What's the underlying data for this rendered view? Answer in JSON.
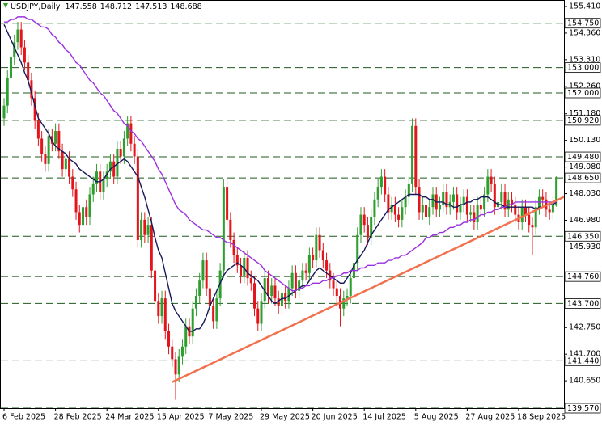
{
  "chart_data": {
    "type": "candlestick",
    "title": "USDJPY,Daily",
    "categories": [
      "6 Feb 2025",
      null,
      null,
      null,
      null,
      null,
      null,
      null,
      null,
      null,
      null,
      null,
      null,
      null,
      null,
      "28 Feb 2025",
      null,
      null,
      null,
      null,
      null,
      null,
      null,
      null,
      null,
      null,
      null,
      null,
      null,
      null,
      "24 Mar 2025",
      null,
      null,
      null,
      null,
      null,
      null,
      null,
      null,
      null,
      null,
      null,
      null,
      null,
      null,
      "15 Apr 2025",
      null,
      null,
      null,
      null,
      null,
      null,
      null,
      null,
      null,
      null,
      null,
      null,
      null,
      null,
      "7 May 2025",
      null,
      null,
      null,
      null,
      null,
      null,
      null,
      null,
      null,
      null,
      null,
      null,
      null,
      null,
      "29 May 2025",
      null,
      null,
      null,
      null,
      null,
      null,
      null,
      null,
      null,
      null,
      null,
      null,
      null,
      null,
      "20 Jun 2025",
      null,
      null,
      null,
      null,
      null,
      null,
      null,
      null,
      null,
      null,
      null,
      null,
      null,
      null,
      "14 Jul 2025",
      null,
      null,
      null,
      null,
      null,
      null,
      null,
      null,
      null,
      null,
      null,
      null,
      null,
      null,
      "5 Aug 2025",
      null,
      null,
      null,
      null,
      null,
      null,
      null,
      null,
      null,
      null,
      null,
      null,
      null,
      null,
      "27 Aug 2025",
      null,
      null,
      null,
      null,
      null,
      null,
      null,
      null,
      null,
      null,
      null,
      null,
      null,
      null,
      "18 Sep 2025",
      null,
      null,
      null,
      null,
      null,
      null,
      null,
      null,
      null,
      null,
      null
    ],
    "open": [
      151.0,
      151.5,
      152.6,
      153.4,
      154.0,
      154.5,
      153.8,
      153.2,
      152.5,
      151.8,
      150.9,
      150.2,
      149.6,
      149.2,
      150.3,
      150.0,
      150.5,
      149.7,
      149.0,
      149.4,
      148.7,
      148.2,
      147.3,
      146.8,
      147.5,
      147.1,
      148.0,
      148.4,
      148.9,
      148.1,
      148.6,
      148.9,
      149.3,
      148.7,
      149.8,
      149.5,
      150.2,
      150.8,
      150.0,
      149.5,
      146.2,
      147.0,
      146.4,
      146.8,
      145.0,
      143.8,
      143.2,
      143.9,
      142.6,
      142.0,
      141.5,
      140.9,
      141.6,
      142.0,
      142.8,
      142.4,
      143.5,
      144.0,
      144.6,
      145.4,
      144.3,
      143.6,
      143.0,
      143.9,
      145.0,
      148.3,
      147.0,
      146.2,
      145.6,
      145.2,
      144.8,
      145.5,
      144.7,
      144.5,
      143.5,
      142.9,
      143.8,
      144.7,
      144.0,
      144.4,
      143.9,
      143.6,
      144.1,
      143.8,
      144.3,
      144.9,
      144.2,
      144.6,
      145.0,
      144.9,
      145.6,
      145.4,
      146.4,
      145.8,
      145.4,
      145.0,
      144.6,
      144.3,
      144.0,
      143.5,
      143.9,
      144.0,
      144.7,
      145.3,
      146.4,
      147.2,
      146.8,
      146.3,
      147.1,
      147.8,
      148.3,
      148.7,
      148.0,
      147.3,
      147.6,
      147.2,
      147.0,
      147.5,
      147.9,
      148.4,
      150.7,
      148.3,
      147.3,
      147.6,
      147.1,
      147.5,
      148.0,
      147.4,
      147.6,
      148.1,
      147.5,
      147.7,
      148.0,
      147.3,
      147.6,
      147.9,
      147.2,
      147.3,
      146.9,
      147.6,
      147.4,
      148.0,
      148.7,
      148.4,
      147.5,
      147.7,
      148.1,
      147.4,
      147.8,
      147.6,
      147.2,
      146.9,
      147.5,
      147.2,
      146.8,
      146.7,
      147.5,
      147.9,
      147.8,
      147.4,
      147.3,
      147.558
    ],
    "high": [
      151.8,
      152.9,
      153.7,
      154.3,
      154.8,
      154.8,
      154.1,
      153.5,
      152.8,
      152.1,
      151.2,
      150.5,
      149.9,
      150.6,
      150.6,
      150.8,
      150.8,
      150.0,
      149.7,
      149.7,
      149.0,
      148.5,
      147.6,
      147.8,
      147.8,
      148.3,
      148.7,
      149.2,
      149.2,
      148.9,
      149.2,
      149.6,
      149.6,
      150.1,
      150.1,
      150.5,
      151.1,
      151.1,
      150.3,
      149.8,
      147.3,
      147.3,
      147.1,
      147.1,
      145.3,
      144.1,
      144.2,
      144.2,
      142.9,
      142.3,
      141.8,
      141.9,
      142.3,
      143.1,
      143.1,
      143.8,
      144.3,
      144.9,
      145.7,
      145.7,
      144.6,
      143.9,
      144.2,
      145.3,
      148.6,
      148.6,
      147.3,
      146.5,
      145.9,
      145.5,
      145.8,
      145.8,
      145.0,
      144.8,
      143.8,
      144.1,
      145.0,
      145.0,
      144.7,
      144.7,
      144.2,
      144.4,
      144.4,
      144.6,
      145.2,
      145.2,
      144.9,
      145.3,
      145.3,
      145.9,
      145.9,
      146.7,
      146.7,
      146.1,
      145.7,
      145.3,
      144.9,
      144.6,
      144.3,
      144.2,
      144.3,
      145.0,
      145.6,
      146.7,
      147.5,
      147.5,
      147.1,
      147.4,
      148.1,
      148.6,
      149.0,
      149.0,
      148.3,
      147.9,
      147.9,
      147.5,
      147.8,
      148.2,
      148.7,
      151.0,
      151.0,
      148.6,
      147.9,
      147.9,
      147.8,
      148.3,
      148.3,
      147.9,
      148.4,
      148.4,
      148.0,
      148.3,
      148.3,
      147.9,
      148.2,
      148.2,
      147.6,
      147.6,
      147.9,
      147.9,
      148.3,
      149.0,
      149.0,
      148.7,
      148.0,
      148.4,
      148.4,
      148.1,
      148.1,
      147.9,
      147.5,
      147.8,
      147.8,
      147.5,
      147.1,
      147.8,
      148.2,
      148.2,
      148.1,
      147.7,
      147.9,
      148.712
    ],
    "low": [
      150.7,
      151.2,
      152.3,
      153.1,
      153.7,
      153.5,
      152.9,
      152.2,
      151.5,
      150.6,
      149.9,
      149.3,
      148.9,
      148.9,
      149.7,
      149.7,
      149.4,
      148.7,
      148.7,
      148.4,
      147.9,
      147.0,
      146.5,
      146.5,
      146.8,
      146.8,
      147.7,
      148.1,
      147.8,
      147.8,
      148.3,
      148.6,
      148.4,
      148.4,
      149.2,
      149.2,
      149.9,
      149.7,
      149.2,
      145.9,
      145.9,
      146.1,
      146.1,
      144.7,
      143.5,
      142.9,
      142.9,
      142.3,
      141.7,
      141.2,
      139.9,
      140.6,
      141.3,
      141.7,
      142.1,
      142.1,
      143.2,
      143.7,
      144.3,
      144.0,
      143.3,
      142.7,
      142.7,
      143.6,
      144.7,
      146.7,
      145.9,
      145.3,
      144.9,
      144.5,
      144.5,
      144.4,
      144.2,
      143.2,
      142.6,
      142.6,
      143.5,
      143.7,
      143.7,
      143.6,
      143.3,
      143.3,
      143.5,
      143.5,
      144.0,
      143.9,
      143.9,
      144.3,
      144.6,
      144.6,
      145.1,
      145.1,
      145.5,
      145.1,
      144.7,
      144.3,
      144.0,
      143.7,
      142.8,
      143.2,
      143.6,
      143.7,
      144.4,
      145.0,
      146.1,
      146.5,
      146.0,
      146.0,
      146.8,
      147.5,
      148.0,
      147.7,
      147.0,
      147.0,
      146.9,
      146.7,
      146.7,
      147.2,
      147.6,
      148.1,
      148.0,
      147.0,
      147.0,
      146.8,
      146.8,
      147.2,
      147.1,
      147.1,
      147.3,
      147.2,
      147.2,
      147.4,
      147.0,
      147.0,
      147.3,
      146.9,
      146.9,
      146.6,
      146.6,
      147.1,
      147.1,
      147.7,
      148.1,
      147.2,
      147.2,
      147.4,
      147.1,
      147.1,
      147.3,
      146.9,
      146.6,
      146.6,
      146.9,
      146.5,
      145.6,
      146.4,
      147.2,
      147.5,
      147.1,
      147.0,
      147.0,
      147.513
    ],
    "close": [
      151.5,
      152.6,
      153.4,
      154.0,
      154.5,
      153.8,
      153.2,
      152.5,
      151.8,
      150.9,
      150.2,
      149.6,
      149.2,
      150.3,
      150.0,
      150.5,
      149.7,
      149.0,
      149.4,
      148.7,
      148.2,
      147.3,
      146.8,
      147.5,
      147.1,
      148.0,
      148.4,
      148.9,
      148.1,
      148.6,
      148.9,
      149.3,
      148.7,
      149.8,
      149.5,
      150.2,
      150.8,
      150.0,
      149.5,
      146.2,
      147.0,
      146.4,
      146.8,
      145.0,
      143.8,
      143.2,
      143.9,
      142.6,
      142.0,
      141.5,
      140.9,
      141.6,
      142.0,
      142.8,
      142.4,
      143.5,
      144.0,
      144.6,
      145.4,
      144.3,
      143.6,
      143.0,
      143.9,
      145.0,
      148.3,
      147.0,
      146.2,
      145.6,
      145.2,
      144.8,
      145.5,
      144.7,
      144.5,
      143.5,
      142.9,
      143.8,
      144.7,
      144.0,
      144.4,
      143.9,
      143.6,
      144.1,
      143.8,
      144.3,
      144.9,
      144.2,
      144.6,
      145.0,
      144.9,
      145.6,
      145.4,
      146.4,
      145.8,
      145.4,
      145.0,
      144.6,
      144.3,
      144.0,
      143.5,
      143.9,
      144.0,
      144.7,
      145.3,
      146.4,
      147.2,
      146.8,
      146.3,
      147.1,
      147.8,
      148.3,
      148.7,
      148.0,
      147.3,
      147.6,
      147.2,
      147.0,
      147.5,
      147.9,
      148.4,
      150.7,
      148.3,
      147.3,
      147.6,
      147.1,
      147.5,
      148.0,
      147.4,
      147.6,
      148.1,
      147.5,
      147.7,
      148.0,
      147.3,
      147.6,
      147.9,
      147.2,
      147.3,
      146.9,
      147.6,
      147.4,
      148.0,
      148.7,
      148.4,
      147.5,
      147.7,
      148.1,
      147.4,
      147.8,
      147.6,
      147.2,
      146.9,
      147.5,
      147.2,
      146.8,
      146.7,
      147.5,
      147.9,
      147.8,
      147.4,
      147.3,
      147.6,
      148.688
    ],
    "up_color": "#2e9e2e",
    "down_color": "#e3141b",
    "lines": [
      {
        "color": "#16185a",
        "values": [
          154.7,
          154.4,
          154.1,
          153.8,
          153.5,
          153.2,
          152.8,
          152.5,
          152.0,
          151.5,
          151.0,
          150.8,
          150.6,
          150.4,
          150.1,
          149.9,
          149.8,
          149.7,
          149.6,
          149.4,
          149.3,
          149.2,
          149.0,
          148.9,
          148.8,
          148.7,
          148.6,
          148.5,
          148.5,
          148.6,
          148.8,
          149.0,
          149.1,
          149.2,
          149.3,
          149.4,
          149.3,
          149.1,
          148.9,
          148.7,
          148.3,
          147.9,
          147.4,
          146.9,
          146.3,
          145.8,
          145.5,
          144.9,
          144.3,
          143.7,
          143.4,
          143.2,
          143.0,
          142.8,
          142.6,
          142.6,
          142.7,
          142.7,
          142.9,
          143.2,
          143.6,
          143.9,
          144.2,
          144.5,
          144.8,
          145.0,
          145.1,
          145.2,
          145.3,
          145.2,
          145.1,
          144.9,
          144.8,
          144.7,
          144.6,
          144.4,
          144.2,
          144.0,
          143.8,
          143.7,
          143.8,
          143.9,
          143.9,
          144.0,
          144.1,
          144.2,
          144.3,
          144.4,
          144.4,
          144.6,
          144.8,
          145.0,
          145.1,
          145.0,
          144.9,
          144.8,
          144.7,
          144.6,
          144.5,
          144.5,
          144.7,
          144.9,
          145.2,
          145.4,
          145.6,
          145.8,
          146.1,
          146.4,
          146.6,
          146.8,
          147.0,
          147.2,
          147.4,
          147.5,
          147.6,
          147.7,
          147.8,
          147.9,
          148.0,
          148.0,
          148.0,
          148.0,
          147.9,
          147.9,
          147.8,
          147.8,
          147.7,
          147.7,
          147.7,
          147.6,
          147.6,
          147.5,
          147.5,
          147.6,
          147.6,
          147.7,
          147.7,
          147.8,
          147.8,
          147.9,
          147.9,
          147.9,
          147.8,
          147.7,
          147.6,
          147.6,
          147.5,
          147.5,
          147.5,
          147.5,
          147.5,
          147.5,
          147.5,
          147.5,
          147.5,
          147.4,
          147.5,
          147.5,
          147.6,
          147.6,
          147.6,
          147.7
        ]
      },
      {
        "color": "#9b30e0",
        "values": [
          154.8,
          154.8,
          154.9,
          154.9,
          155.0,
          155.0,
          155.0,
          154.9,
          154.9,
          154.8,
          154.7,
          154.6,
          154.6,
          154.5,
          154.3,
          154.2,
          154.0,
          153.9,
          153.7,
          153.6,
          153.4,
          153.2,
          153.1,
          152.9,
          152.7,
          152.5,
          152.4,
          152.2,
          152.0,
          151.9,
          151.7,
          151.5,
          151.3,
          151.2,
          151.0,
          150.8,
          150.7,
          150.5,
          150.4,
          150.2,
          150.1,
          149.9,
          149.7,
          149.5,
          149.3,
          149.0,
          148.8,
          148.5,
          148.2,
          147.9,
          147.6,
          147.4,
          147.3,
          147.2,
          147.0,
          146.9,
          146.8,
          146.7,
          146.6,
          146.6,
          146.5,
          146.4,
          146.3,
          146.3,
          146.2,
          146.1,
          146.1,
          146.0,
          145.9,
          145.8,
          145.7,
          145.6,
          145.5,
          145.4,
          145.3,
          145.2,
          145.0,
          144.9,
          144.8,
          144.7,
          144.6,
          144.5,
          144.4,
          144.3,
          144.2,
          144.2,
          144.3,
          144.3,
          144.4,
          144.4,
          144.5,
          144.5,
          144.5,
          144.6,
          144.6,
          144.7,
          144.7,
          144.8,
          144.8,
          144.9,
          144.9,
          145.0,
          145.0,
          145.0,
          145.1,
          145.1,
          145.2,
          145.2,
          145.2,
          145.3,
          145.3,
          145.3,
          145.4,
          145.4,
          145.5,
          145.5,
          145.6,
          145.6,
          145.7,
          145.8,
          145.9,
          146.0,
          146.1,
          146.3,
          146.3,
          146.4,
          146.4,
          146.5,
          146.5,
          146.6,
          146.7,
          146.7,
          146.8,
          146.8,
          146.9,
          146.9,
          147.0,
          147.0,
          147.1,
          147.2,
          147.2,
          147.3,
          147.3,
          147.4,
          147.4,
          147.5,
          147.5,
          147.6,
          147.6,
          147.7,
          147.7,
          147.7,
          147.7,
          147.7,
          147.7,
          147.7,
          147.7,
          147.7,
          147.7,
          147.7,
          147.7,
          147.7
        ]
      }
    ],
    "trend_line": {
      "color": "#f2724f",
      "values": [
        140.6,
        147.9
      ]
    },
    "level_color": "#1f5a1f",
    "levels": [
      {
        "value": 154.75,
        "label": "154.750"
      },
      {
        "value": 153.0,
        "label": "153.000"
      },
      {
        "value": 152.0,
        "label": "152.000"
      },
      {
        "value": 150.92,
        "label": "150.920"
      },
      {
        "value": 149.48,
        "label": "149.480"
      },
      {
        "value": 148.65,
        "label": "148.650"
      },
      {
        "value": 146.35,
        "label": "146.350"
      },
      {
        "value": 144.76,
        "label": "144.760"
      },
      {
        "value": 143.7,
        "label": "143.700"
      },
      {
        "value": 141.44,
        "label": "141.440"
      },
      {
        "value": 139.57,
        "label": "139.570"
      }
    ],
    "ylim": [
      139.57,
      155.665
    ],
    "yticks": [
      {
        "value": 155.41,
        "label": "155.410"
      },
      {
        "value": 154.36,
        "label": "154.360"
      },
      {
        "value": 153.31,
        "label": "153.310"
      },
      {
        "value": 152.26,
        "label": "152.260"
      },
      {
        "value": 151.18,
        "label": "151.180"
      },
      {
        "value": 150.13,
        "label": "150.130"
      },
      {
        "value": 149.08,
        "label": "149.080"
      },
      {
        "value": 148.03,
        "label": "148.030"
      },
      {
        "value": 146.98,
        "label": "146.980"
      },
      {
        "value": 145.93,
        "label": "145.930"
      },
      {
        "value": 142.75,
        "label": "142.750"
      },
      {
        "value": 141.7,
        "label": "141.700"
      },
      {
        "value": 140.65,
        "label": "140.650"
      }
    ]
  }
}
